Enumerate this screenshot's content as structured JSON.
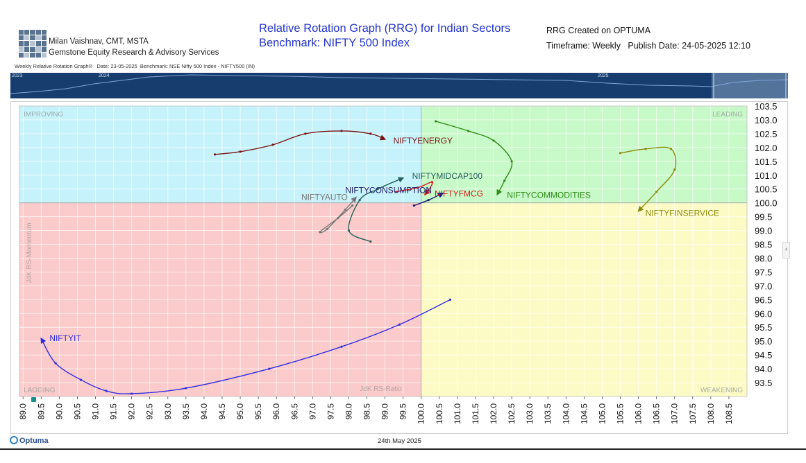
{
  "header": {
    "author_name": "Milan Vaishnav, CMT, MSTA",
    "author_org": "Gemstone Equity Research & Advisory Services",
    "title_line1": "Relative Rotation Graph (RRG) for Indian Sectors",
    "title_line2": "Benchmark: NIFTY 500 Index",
    "created_on": "RRG Created on OPTUMA",
    "timeframe_publish": "Timeframe: Weekly   Publish Date: 24-05-2025 12:10",
    "subheader": "Weekly Relative Rotation Graph®   Date: 23-05-2025  Benchmark: NSE Nifty 500 Index - NIFTY500 (IN)"
  },
  "timeline": {
    "years": [
      "2023",
      "2024",
      "2025"
    ]
  },
  "side_tab": "‹",
  "footer": {
    "brand": "Optuma",
    "date": "24th May 2025"
  },
  "colors": {
    "improving": "#c6f3fb",
    "leading": "#c8f9c8",
    "lagging": "#fbcaca",
    "weakening": "#fdfbc5"
  },
  "chart_data": {
    "type": "scatter",
    "subtype": "relative-rotation-graph",
    "xlabel": "JdK RS-Ratio",
    "ylabel": "JdK RS-Momentum",
    "xlim": [
      88.9,
      109.0
    ],
    "ylim": [
      93.0,
      103.5
    ],
    "x_ticks": [
      "89.0",
      "89.5",
      "90.0",
      "90.5",
      "91.0",
      "91.5",
      "92.0",
      "92.5",
      "93.0",
      "93.5",
      "94.0",
      "94.5",
      "95.0",
      "95.5",
      "96.0",
      "96.5",
      "97.0",
      "97.5",
      "98.0",
      "98.5",
      "99.0",
      "99.5",
      "100.0",
      "100.5",
      "101.0",
      "101.5",
      "102.0",
      "102.5",
      "103.0",
      "103.5",
      "104.0",
      "104.5",
      "105.0",
      "105.5",
      "106.0",
      "106.5",
      "107.0",
      "107.5",
      "108.0",
      "108.5"
    ],
    "y_ticks": [
      "103.5",
      "103.0",
      "102.5",
      "102.0",
      "101.5",
      "101.0",
      "100.5",
      "100.0",
      "99.5",
      "99.0",
      "98.5",
      "98.0",
      "97.5",
      "97.0",
      "96.5",
      "96.0",
      "95.5",
      "95.0",
      "94.5",
      "94.0",
      "93.5"
    ],
    "quadrants": [
      "IMPROVING",
      "LEADING",
      "LAGGING",
      "WEAKENING"
    ],
    "center": [
      100.0,
      100.0
    ],
    "series": [
      {
        "name": "NIFTYENERGY",
        "color": "#7a1212",
        "points": [
          [
            94.3,
            101.75
          ],
          [
            95.0,
            101.85
          ],
          [
            95.9,
            102.1
          ],
          [
            96.8,
            102.5
          ],
          [
            97.8,
            102.6
          ],
          [
            98.6,
            102.5
          ],
          [
            99.0,
            102.3
          ]
        ]
      },
      {
        "name": "NIFTYCOMMODITIES",
        "color": "#2e8b15",
        "points": [
          [
            100.4,
            102.95
          ],
          [
            101.3,
            102.6
          ],
          [
            102.0,
            102.25
          ],
          [
            102.5,
            101.5
          ],
          [
            102.3,
            100.8
          ],
          [
            102.1,
            100.3
          ]
        ]
      },
      {
        "name": "NIFTYFINSERVICE",
        "color": "#8a8a0c",
        "points": [
          [
            105.5,
            101.8
          ],
          [
            106.2,
            101.95
          ],
          [
            106.9,
            101.95
          ],
          [
            107.0,
            101.2
          ],
          [
            106.5,
            100.4
          ],
          [
            106.0,
            99.7
          ]
        ]
      },
      {
        "name": "NIFTYMIDCAP100",
        "color": "#25605a",
        "points": [
          [
            98.6,
            98.6
          ],
          [
            98.0,
            99.0
          ],
          [
            98.3,
            100.1
          ],
          [
            98.8,
            100.5
          ],
          [
            99.5,
            100.9
          ]
        ]
      },
      {
        "name": "NIFTYAUTO",
        "color": "#777777",
        "points": [
          [
            98.1,
            99.9
          ],
          [
            97.7,
            99.45
          ],
          [
            97.2,
            98.95
          ],
          [
            97.4,
            99.05
          ],
          [
            97.9,
            99.75
          ],
          [
            98.2,
            100.2
          ]
        ]
      },
      {
        "name": "NIFTYCONSUMPTION",
        "color": "#1b1b6b",
        "points": [
          [
            99.8,
            99.9
          ],
          [
            100.2,
            100.1
          ],
          [
            100.6,
            100.35
          ]
        ]
      },
      {
        "name": "NIFTYFMCG",
        "color": "#d81a1a",
        "points": [
          [
            99.3,
            100.4
          ],
          [
            99.9,
            100.55
          ],
          [
            100.3,
            100.75
          ],
          [
            100.2,
            100.45
          ],
          [
            100.1,
            100.3
          ]
        ]
      },
      {
        "name": "NIFTYIT",
        "color": "#2d2de0",
        "points": [
          [
            100.8,
            96.5
          ],
          [
            99.4,
            95.6
          ],
          [
            97.8,
            94.8
          ],
          [
            95.8,
            94.0
          ],
          [
            93.5,
            93.3
          ],
          [
            92.0,
            93.1
          ],
          [
            91.3,
            93.2
          ],
          [
            90.6,
            93.6
          ],
          [
            89.9,
            94.2
          ],
          [
            89.5,
            95.1
          ]
        ]
      }
    ]
  }
}
